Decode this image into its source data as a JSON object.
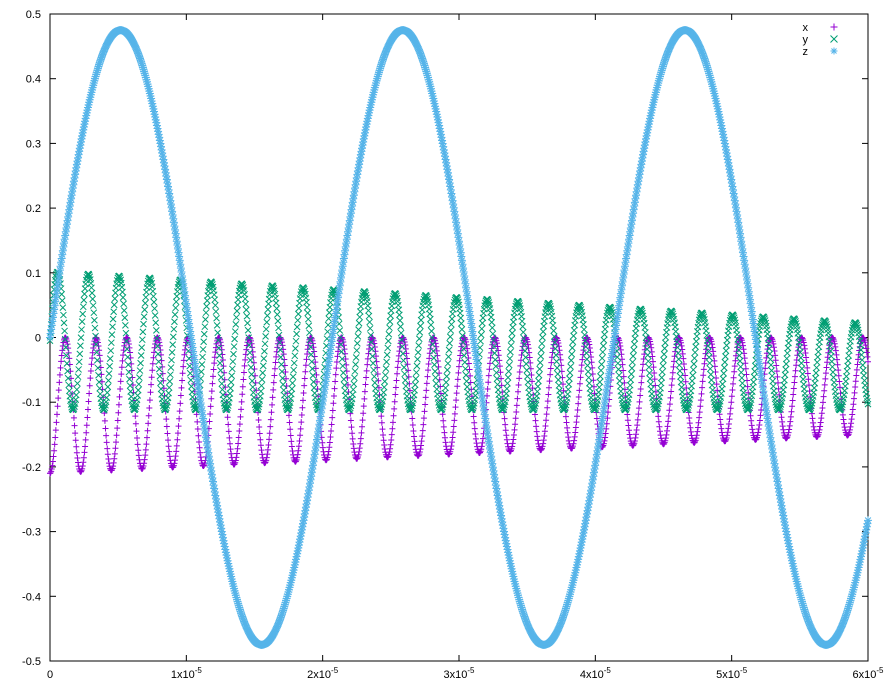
{
  "chart_data": {
    "type": "scatter",
    "xlim": [
      0,
      6e-05
    ],
    "ylim": [
      -0.5,
      0.5
    ],
    "grid": false,
    "legend_position": "top-right",
    "x_ticks": [
      {
        "value": 0,
        "mantissa": "0",
        "exponent": ""
      },
      {
        "value": 1e-05,
        "mantissa": "1x10",
        "exponent": "-5"
      },
      {
        "value": 2e-05,
        "mantissa": "2x10",
        "exponent": "-5"
      },
      {
        "value": 3e-05,
        "mantissa": "3x10",
        "exponent": "-5"
      },
      {
        "value": 4e-05,
        "mantissa": "4x10",
        "exponent": "-5"
      },
      {
        "value": 5e-05,
        "mantissa": "5x10",
        "exponent": "-5"
      },
      {
        "value": 6e-05,
        "mantissa": "6x10",
        "exponent": "-5"
      }
    ],
    "y_ticks": [
      {
        "value": 0.5,
        "label": "0.5"
      },
      {
        "value": 0.4,
        "label": "0.4"
      },
      {
        "value": 0.3,
        "label": "0.3"
      },
      {
        "value": 0.2,
        "label": "0.2"
      },
      {
        "value": 0.1,
        "label": "0.1"
      },
      {
        "value": 0,
        "label": "0"
      },
      {
        "value": -0.1,
        "label": "-0.1"
      },
      {
        "value": -0.2,
        "label": "-0.2"
      },
      {
        "value": -0.3,
        "label": "-0.3"
      },
      {
        "value": -0.4,
        "label": "-0.4"
      },
      {
        "value": -0.5,
        "label": "-0.5"
      }
    ],
    "series": [
      {
        "name": "x",
        "color": "#9400d3",
        "marker": "plus"
      },
      {
        "name": "y",
        "color": "#009e73",
        "marker": "cross"
      },
      {
        "name": "z",
        "color": "#56b4e9",
        "marker": "star"
      }
    ]
  }
}
